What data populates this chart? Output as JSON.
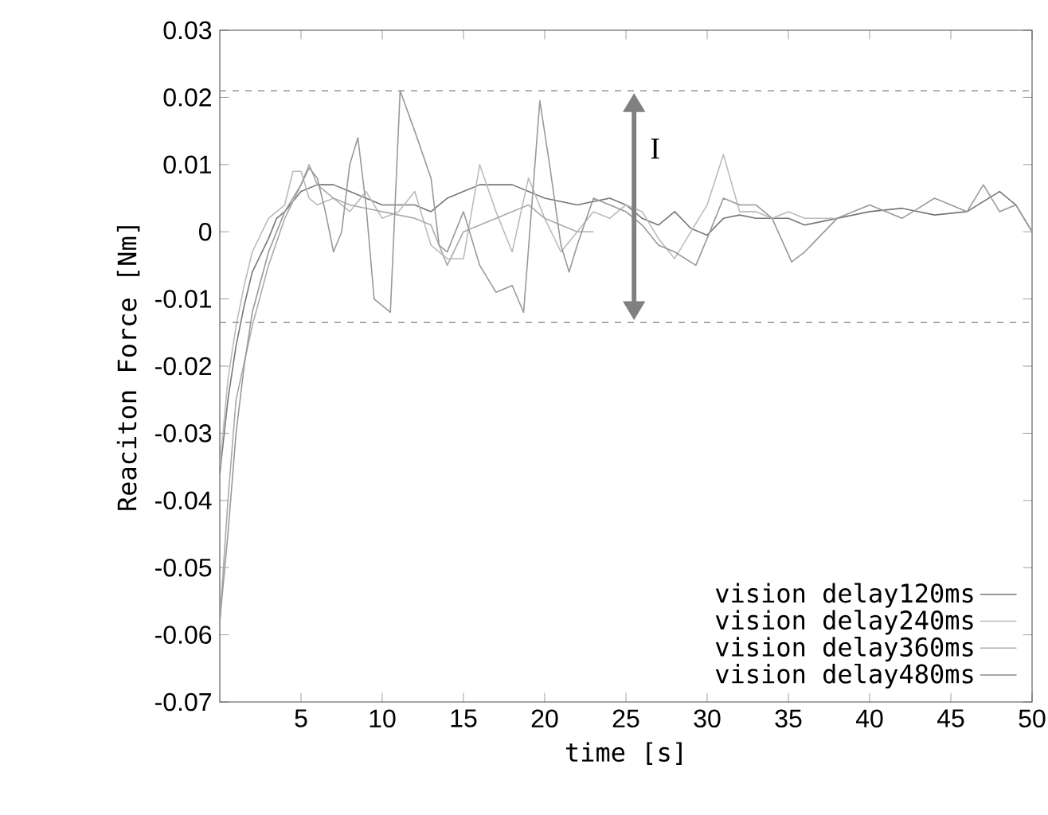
{
  "chart_data": {
    "type": "line",
    "xlabel": "time [s]",
    "ylabel": "Reaciton Force [Nm]",
    "xlim": [
      0,
      50
    ],
    "xticks": [
      5,
      10,
      15,
      20,
      25,
      30,
      35,
      40,
      45,
      50
    ],
    "ylim": [
      -0.07,
      0.03
    ],
    "yticks": [
      -0.07,
      -0.06,
      -0.05,
      -0.04,
      -0.03,
      -0.02,
      -0.01,
      0,
      0.01,
      0.02,
      0.03
    ],
    "legend": "bottom right",
    "grid": false,
    "marker": "none",
    "line_style": "solid",
    "ref_lines": [
      {
        "axis": "y",
        "value": 0.021,
        "color": "#999999",
        "line_style": "dashed"
      },
      {
        "axis": "y",
        "value": -0.0135,
        "color": "#999999",
        "line_style": "dashed"
      }
    ],
    "annotations": [
      "I"
    ],
    "series": [
      {
        "name": "vision delay120ms",
        "color": "#777777",
        "x": [
          0,
          0.5,
          1,
          1.5,
          2,
          3,
          3.5,
          4,
          5,
          6,
          7,
          8,
          9,
          10,
          12,
          13,
          14,
          15,
          16,
          18,
          19,
          20,
          22,
          24,
          25,
          26,
          27,
          28,
          29,
          30,
          31,
          32,
          33,
          35,
          36,
          38,
          40,
          42,
          44,
          46,
          48,
          49,
          50
        ],
        "values": [
          -0.036,
          -0.025,
          -0.017,
          -0.011,
          -0.006,
          -0.001,
          0.002,
          0.003,
          0.006,
          0.007,
          0.007,
          0.006,
          0.005,
          0.004,
          0.004,
          0.003,
          0.005,
          0.006,
          0.007,
          0.007,
          0.006,
          0.005,
          0.004,
          0.005,
          0.004,
          0.002,
          0.001,
          0.003,
          0.0005,
          -0.0005,
          0.002,
          0.0025,
          0.002,
          0.002,
          0.001,
          0.002,
          0.003,
          0.0035,
          0.0025,
          0.003,
          0.006,
          0.004,
          0
        ]
      },
      {
        "name": "vision delay240ms",
        "color": "#bbbbbb",
        "x": [
          0,
          0.5,
          1,
          1.5,
          2,
          3,
          4,
          4.5,
          5,
          5.5,
          6,
          7,
          8,
          9,
          10,
          11,
          12,
          13,
          14,
          15,
          16,
          17,
          18,
          19,
          20,
          21,
          22,
          23,
          24,
          25,
          26,
          27,
          28,
          29,
          30,
          31,
          32,
          33,
          34,
          35,
          36,
          37,
          38
        ],
        "values": [
          -0.035,
          -0.022,
          -0.014,
          -0.008,
          -0.003,
          0.002,
          0.004,
          0.009,
          0.009,
          0.005,
          0.004,
          0.005,
          0.003,
          0.006,
          0.002,
          0.003,
          0.006,
          -0.002,
          -0.004,
          -0.004,
          0.01,
          0.003,
          -0.003,
          0.008,
          0.002,
          -0.003,
          0,
          0.003,
          0.002,
          0.004,
          0.003,
          -0.001,
          -0.004,
          0,
          0.004,
          0.0115,
          0.003,
          0.003,
          0.002,
          0.003,
          0.002,
          0.002,
          0.002
        ]
      },
      {
        "name": "vision delay360ms",
        "color": "#aaaaaa",
        "x": [
          0,
          0.5,
          1,
          2,
          3,
          4,
          5,
          5.5,
          6,
          7,
          8,
          9,
          10,
          11,
          12,
          13,
          14,
          15,
          16,
          17,
          18,
          19,
          20,
          21,
          22,
          23
        ],
        "values": [
          -0.058,
          -0.04,
          -0.025,
          -0.014,
          -0.005,
          0.002,
          0.007,
          0.01,
          0.007,
          0.005,
          0.004,
          0.0035,
          0.003,
          0.0025,
          0.002,
          0.001,
          -0.005,
          0,
          0.001,
          0.002,
          0.003,
          0.004,
          0.002,
          0.001,
          0,
          0
        ]
      },
      {
        "name": "vision delay480ms",
        "color": "#999999",
        "x": [
          0,
          0.5,
          1,
          1.5,
          2,
          3,
          4,
          5,
          5.5,
          6,
          6.5,
          7,
          7.5,
          8,
          8.5,
          9,
          9.5,
          10.5,
          11.1,
          12,
          13,
          13.5,
          14,
          15,
          16,
          17,
          18,
          18.7,
          19.7,
          20.3,
          21,
          21.5,
          22,
          23,
          24,
          25,
          26,
          27,
          28,
          29.3,
          30,
          31,
          32,
          33,
          34,
          35.2,
          36,
          38,
          40,
          42,
          44,
          46,
          47,
          48,
          49,
          50
        ],
        "values": [
          -0.058,
          -0.045,
          -0.03,
          -0.02,
          -0.012,
          -0.003,
          0.003,
          0.007,
          0.0095,
          0.008,
          0.003,
          -0.003,
          0,
          0.01,
          0.014,
          0.004,
          -0.01,
          -0.012,
          0.021,
          0.015,
          0.008,
          -0.002,
          -0.003,
          0.003,
          -0.005,
          -0.009,
          -0.008,
          -0.012,
          0.0195,
          0.01,
          -0.002,
          -0.006,
          -0.002,
          0.005,
          0.004,
          0.003,
          0.001,
          -0.002,
          -0.003,
          -0.005,
          -0.001,
          0.005,
          0.004,
          0.004,
          0.002,
          -0.0045,
          -0.003,
          0.002,
          0.004,
          0.002,
          0.005,
          0.003,
          0.007,
          0.003,
          0.004,
          0
        ]
      }
    ]
  }
}
